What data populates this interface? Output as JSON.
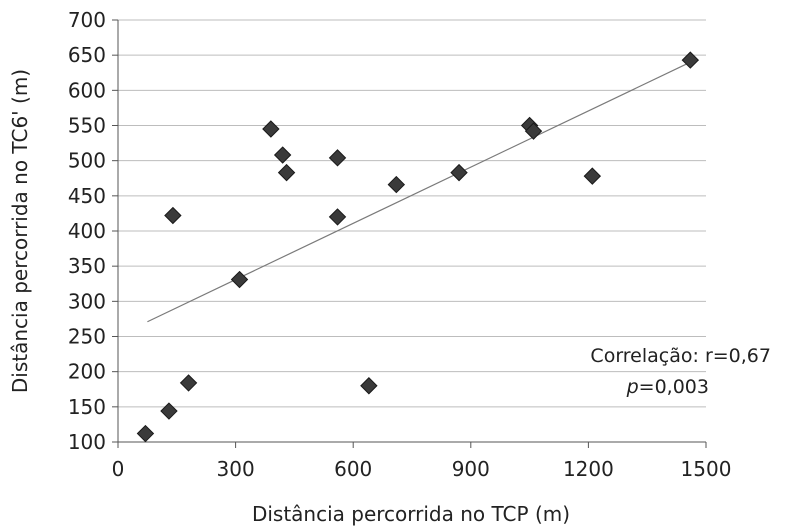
{
  "chart_data": {
    "type": "scatter",
    "xlabel": "Distância percorrida no TCP (m)",
    "ylabel": "Distância percorrida no TC6' (m)",
    "xlim": [
      0,
      1500
    ],
    "ylim": [
      100,
      700
    ],
    "x_ticks": [
      "0",
      "300",
      "600",
      "900",
      "1200",
      "1500"
    ],
    "y_ticks": [
      "100",
      "150",
      "200",
      "250",
      "300",
      "350",
      "400",
      "450",
      "500",
      "550",
      "600",
      "650",
      "700"
    ],
    "grid": "horizontal",
    "marker": "diamond",
    "marker_color": "#3a3a3a",
    "points": [
      {
        "x": 70,
        "y": 112
      },
      {
        "x": 130,
        "y": 144
      },
      {
        "x": 140,
        "y": 422
      },
      {
        "x": 180,
        "y": 184
      },
      {
        "x": 310,
        "y": 331
      },
      {
        "x": 390,
        "y": 545
      },
      {
        "x": 420,
        "y": 508
      },
      {
        "x": 430,
        "y": 483
      },
      {
        "x": 560,
        "y": 504
      },
      {
        "x": 560,
        "y": 420
      },
      {
        "x": 640,
        "y": 180
      },
      {
        "x": 710,
        "y": 466
      },
      {
        "x": 870,
        "y": 483
      },
      {
        "x": 1050,
        "y": 550
      },
      {
        "x": 1060,
        "y": 542
      },
      {
        "x": 1210,
        "y": 478
      },
      {
        "x": 1460,
        "y": 643
      }
    ],
    "trendline": {
      "x": [
        75,
        1460
      ],
      "y": [
        271,
        640
      ]
    },
    "annotation": {
      "line1": "Correlação: r=0,67",
      "line2_italic": "p",
      "line2_rest": "=0,003"
    }
  }
}
